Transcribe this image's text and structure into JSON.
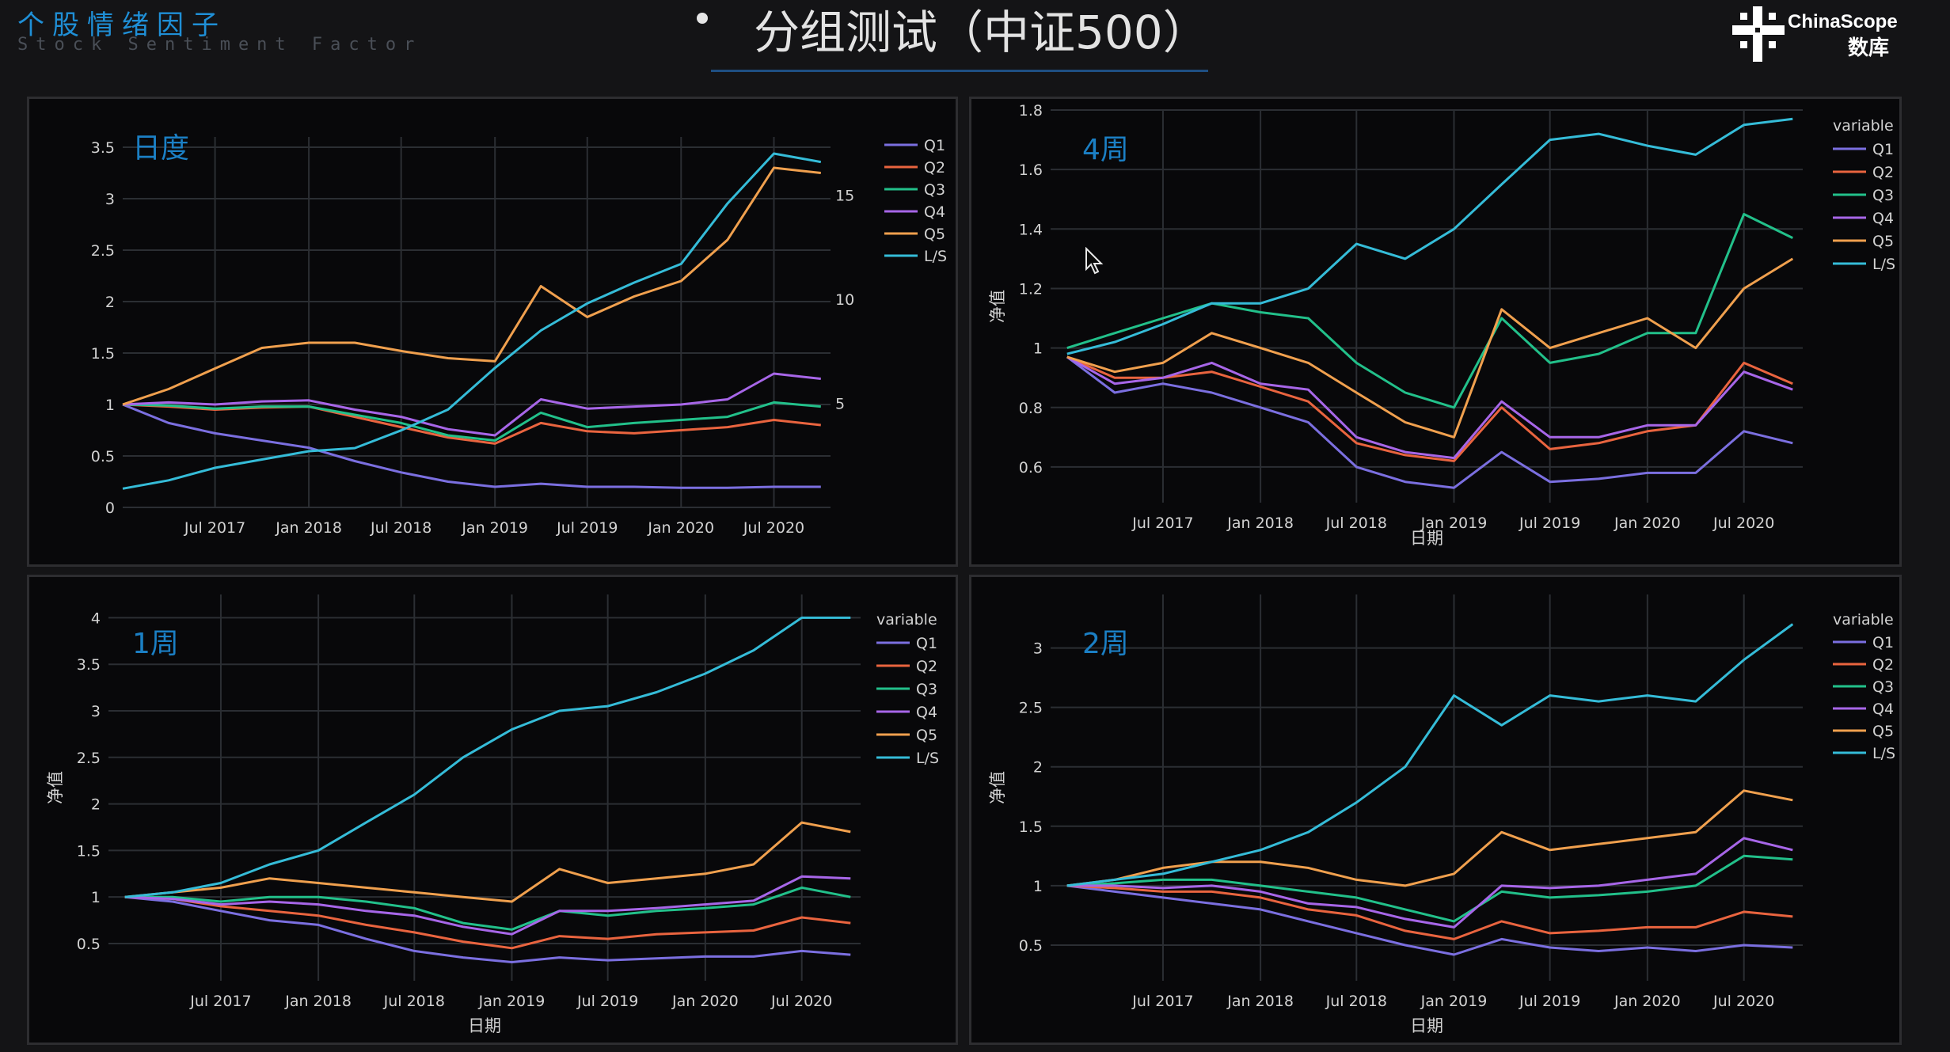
{
  "header": {
    "brand_cn": "个股情绪因子",
    "brand_en": "Stock Sentiment Factor",
    "title": "分组测试（中证500）",
    "logo_en": "ChinaScope",
    "logo_cn": "数库"
  },
  "colors": {
    "Q1": "#7b6fe0",
    "Q2": "#e9643f",
    "Q3": "#22c08a",
    "Q4": "#a766e8",
    "Q5": "#f0a04e",
    "L/S": "#35bcd8",
    "grid": "#2b2e33",
    "tick": "#d2d2d2",
    "panel_label": "#1b7fc4"
  },
  "chart_data": [
    {
      "id": "daily",
      "type": "line",
      "panel_label": "日度",
      "xlabel": "",
      "ylabel": "",
      "show_legend_title": false,
      "legend_title": "",
      "x_range": [
        "2017-01-01",
        "2020-10-20"
      ],
      "x_ticks": [
        "Jul 2017",
        "Jan 2018",
        "Jul 2018",
        "Jan 2019",
        "Jul 2019",
        "Jan 2020",
        "Jul 2020"
      ],
      "x_tick_dates": [
        "2017-07-01",
        "2018-01-01",
        "2018-07-01",
        "2019-01-01",
        "2019-07-01",
        "2020-01-01",
        "2020-07-01"
      ],
      "ylim": [
        0,
        3.6
      ],
      "y_ticks": [
        0,
        0.5,
        1,
        1.5,
        2,
        2.5,
        3,
        3.5
      ],
      "y_tick_labels": [
        "0",
        "0.5",
        "1",
        "1.5",
        "2",
        "2.5",
        "3",
        "3.5"
      ],
      "y2lim": [
        0,
        17.8
      ],
      "y2_ticks": [
        5,
        10,
        15
      ],
      "y2_tick_labels": [
        "5",
        "10",
        "15"
      ],
      "legend": [
        "Q1",
        "Q2",
        "Q3",
        "Q4",
        "Q5",
        "L/S"
      ],
      "dates": [
        "2017-01-01",
        "2017-04-01",
        "2017-07-01",
        "2017-10-01",
        "2018-01-01",
        "2018-04-01",
        "2018-07-01",
        "2018-10-01",
        "2019-01-01",
        "2019-04-01",
        "2019-07-01",
        "2019-10-01",
        "2020-01-01",
        "2020-04-01",
        "2020-07-01",
        "2020-10-01"
      ],
      "series": [
        {
          "name": "Q1",
          "values": [
            1.0,
            0.82,
            0.72,
            0.65,
            0.58,
            0.45,
            0.34,
            0.25,
            0.2,
            0.23,
            0.2,
            0.2,
            0.19,
            0.19,
            0.2,
            0.2
          ]
        },
        {
          "name": "Q2",
          "values": [
            1.0,
            0.98,
            0.95,
            0.97,
            0.98,
            0.88,
            0.78,
            0.68,
            0.62,
            0.82,
            0.74,
            0.72,
            0.75,
            0.78,
            0.85,
            0.8
          ]
        },
        {
          "name": "Q3",
          "values": [
            1.0,
            0.99,
            0.96,
            0.98,
            0.98,
            0.9,
            0.82,
            0.7,
            0.65,
            0.92,
            0.78,
            0.82,
            0.85,
            0.88,
            1.02,
            0.98
          ]
        },
        {
          "name": "Q4",
          "values": [
            1.0,
            1.02,
            1.0,
            1.03,
            1.04,
            0.95,
            0.88,
            0.76,
            0.7,
            1.05,
            0.96,
            0.98,
            1.0,
            1.05,
            1.3,
            1.25
          ]
        },
        {
          "name": "Q5",
          "values": [
            1.0,
            1.15,
            1.35,
            1.55,
            1.6,
            1.6,
            1.52,
            1.45,
            1.42,
            2.15,
            1.85,
            2.05,
            2.2,
            2.6,
            3.3,
            3.25
          ],
          "axis": "y"
        },
        {
          "name": "L/S",
          "values": [
            0.9,
            1.3,
            1.9,
            2.3,
            2.7,
            2.85,
            3.7,
            4.7,
            6.7,
            8.5,
            9.8,
            10.8,
            11.7,
            14.6,
            17.0,
            16.6
          ],
          "axis": "y2"
        }
      ]
    },
    {
      "id": "four_week",
      "type": "line",
      "panel_label": "4周",
      "xlabel": "日期",
      "ylabel": "净值",
      "show_legend_title": true,
      "legend_title": "variable",
      "x_range": [
        "2016-12-01",
        "2020-10-20"
      ],
      "x_ticks": [
        "Jul 2017",
        "Jan 2018",
        "Jul 2018",
        "Jan 2019",
        "Jul 2019",
        "Jan 2020",
        "Jul 2020"
      ],
      "x_tick_dates": [
        "2017-07-01",
        "2018-01-01",
        "2018-07-01",
        "2019-01-01",
        "2019-07-01",
        "2020-01-01",
        "2020-07-01"
      ],
      "ylim": [
        0.48,
        1.8
      ],
      "y_ticks": [
        0.6,
        0.8,
        1,
        1.2,
        1.4,
        1.6,
        1.8
      ],
      "y_tick_labels": [
        "0.6",
        "0.8",
        "1",
        "1.2",
        "1.4",
        "1.6",
        "1.8"
      ],
      "legend": [
        "Q1",
        "Q2",
        "Q3",
        "Q4",
        "Q5",
        "L/S"
      ],
      "dates": [
        "2017-01-01",
        "2017-04-01",
        "2017-07-01",
        "2017-10-01",
        "2018-01-01",
        "2018-04-01",
        "2018-07-01",
        "2018-10-01",
        "2019-01-01",
        "2019-04-01",
        "2019-07-01",
        "2019-10-01",
        "2020-01-01",
        "2020-04-01",
        "2020-07-01",
        "2020-10-01"
      ],
      "series": [
        {
          "name": "Q1",
          "values": [
            0.97,
            0.85,
            0.88,
            0.85,
            0.8,
            0.75,
            0.6,
            0.55,
            0.53,
            0.65,
            0.55,
            0.56,
            0.58,
            0.58,
            0.72,
            0.68
          ]
        },
        {
          "name": "Q2",
          "values": [
            0.97,
            0.9,
            0.9,
            0.92,
            0.87,
            0.82,
            0.68,
            0.64,
            0.62,
            0.8,
            0.66,
            0.68,
            0.72,
            0.74,
            0.95,
            0.88
          ]
        },
        {
          "name": "Q3",
          "values": [
            1.0,
            1.05,
            1.1,
            1.15,
            1.12,
            1.1,
            0.95,
            0.85,
            0.8,
            1.1,
            0.95,
            0.98,
            1.05,
            1.05,
            1.45,
            1.37
          ]
        },
        {
          "name": "Q4",
          "values": [
            0.97,
            0.88,
            0.9,
            0.95,
            0.88,
            0.86,
            0.7,
            0.65,
            0.63,
            0.82,
            0.7,
            0.7,
            0.74,
            0.74,
            0.92,
            0.86
          ]
        },
        {
          "name": "Q5",
          "values": [
            0.97,
            0.92,
            0.95,
            1.05,
            1.0,
            0.95,
            0.85,
            0.75,
            0.7,
            1.13,
            1.0,
            1.05,
            1.1,
            1.0,
            1.2,
            1.3
          ]
        },
        {
          "name": "L/S",
          "values": [
            0.98,
            1.02,
            1.08,
            1.15,
            1.15,
            1.2,
            1.35,
            1.3,
            1.4,
            1.55,
            1.7,
            1.72,
            1.68,
            1.65,
            1.75,
            1.77
          ]
        }
      ]
    },
    {
      "id": "one_week",
      "type": "line",
      "panel_label": "1周",
      "xlabel": "日期",
      "ylabel": "净值",
      "show_legend_title": true,
      "legend_title": "variable",
      "x_range": [
        "2016-12-01",
        "2020-10-20"
      ],
      "x_ticks": [
        "Jul 2017",
        "Jan 2018",
        "Jul 2018",
        "Jan 2019",
        "Jul 2019",
        "Jan 2020",
        "Jul 2020"
      ],
      "x_tick_dates": [
        "2017-07-01",
        "2018-01-01",
        "2018-07-01",
        "2019-01-01",
        "2019-07-01",
        "2020-01-01",
        "2020-07-01"
      ],
      "ylim": [
        0.1,
        4.25
      ],
      "y_ticks": [
        0.5,
        1,
        1.5,
        2,
        2.5,
        3,
        3.5,
        4
      ],
      "y_tick_labels": [
        "0.5",
        "1",
        "1.5",
        "2",
        "2.5",
        "3",
        "3.5",
        "4"
      ],
      "legend": [
        "Q1",
        "Q2",
        "Q3",
        "Q4",
        "Q5",
        "L/S"
      ],
      "dates": [
        "2017-01-01",
        "2017-04-01",
        "2017-07-01",
        "2017-10-01",
        "2018-01-01",
        "2018-04-01",
        "2018-07-01",
        "2018-10-01",
        "2019-01-01",
        "2019-04-01",
        "2019-07-01",
        "2019-10-01",
        "2020-01-01",
        "2020-04-01",
        "2020-07-01",
        "2020-10-01"
      ],
      "series": [
        {
          "name": "Q1",
          "values": [
            1.0,
            0.95,
            0.85,
            0.75,
            0.7,
            0.55,
            0.42,
            0.35,
            0.3,
            0.35,
            0.32,
            0.34,
            0.36,
            0.36,
            0.42,
            0.38
          ]
        },
        {
          "name": "Q2",
          "values": [
            1.0,
            0.98,
            0.9,
            0.85,
            0.8,
            0.7,
            0.62,
            0.52,
            0.45,
            0.58,
            0.55,
            0.6,
            0.62,
            0.64,
            0.78,
            0.72
          ]
        },
        {
          "name": "Q3",
          "values": [
            1.0,
            1.0,
            0.95,
            1.0,
            1.0,
            0.95,
            0.88,
            0.72,
            0.65,
            0.85,
            0.8,
            0.85,
            0.88,
            0.92,
            1.1,
            1.0
          ]
        },
        {
          "name": "Q4",
          "values": [
            1.0,
            0.98,
            0.92,
            0.95,
            0.92,
            0.85,
            0.8,
            0.68,
            0.6,
            0.85,
            0.85,
            0.88,
            0.92,
            0.96,
            1.22,
            1.2
          ]
        },
        {
          "name": "Q5",
          "values": [
            1.0,
            1.05,
            1.1,
            1.2,
            1.15,
            1.1,
            1.05,
            1.0,
            0.95,
            1.3,
            1.15,
            1.2,
            1.25,
            1.35,
            1.8,
            1.7
          ]
        },
        {
          "name": "L/S",
          "values": [
            1.0,
            1.05,
            1.15,
            1.35,
            1.5,
            1.8,
            2.1,
            2.5,
            2.8,
            3.0,
            3.05,
            3.2,
            3.4,
            3.65,
            4.0,
            4.0
          ]
        }
      ]
    },
    {
      "id": "two_week",
      "type": "line",
      "panel_label": "2周",
      "xlabel": "日期",
      "ylabel": "净值",
      "show_legend_title": true,
      "legend_title": "variable",
      "x_range": [
        "2016-12-01",
        "2020-10-20"
      ],
      "x_ticks": [
        "Jul 2017",
        "Jan 2018",
        "Jul 2018",
        "Jan 2019",
        "Jul 2019",
        "Jan 2020",
        "Jul 2020"
      ],
      "x_tick_dates": [
        "2017-07-01",
        "2018-01-01",
        "2018-07-01",
        "2019-01-01",
        "2019-07-01",
        "2020-01-01",
        "2020-07-01"
      ],
      "ylim": [
        0.2,
        3.45
      ],
      "y_ticks": [
        0.5,
        1,
        1.5,
        2,
        2.5,
        3
      ],
      "y_tick_labels": [
        "0.5",
        "1",
        "1.5",
        "2",
        "2.5",
        "3"
      ],
      "legend": [
        "Q1",
        "Q2",
        "Q3",
        "Q4",
        "Q5",
        "L/S"
      ],
      "dates": [
        "2017-01-01",
        "2017-04-01",
        "2017-07-01",
        "2017-10-01",
        "2018-01-01",
        "2018-04-01",
        "2018-07-01",
        "2018-10-01",
        "2019-01-01",
        "2019-04-01",
        "2019-07-01",
        "2019-10-01",
        "2020-01-01",
        "2020-04-01",
        "2020-07-01",
        "2020-10-01"
      ],
      "series": [
        {
          "name": "Q1",
          "values": [
            1.0,
            0.95,
            0.9,
            0.85,
            0.8,
            0.7,
            0.6,
            0.5,
            0.42,
            0.55,
            0.48,
            0.45,
            0.48,
            0.45,
            0.5,
            0.48
          ]
        },
        {
          "name": "Q2",
          "values": [
            1.0,
            0.98,
            0.95,
            0.95,
            0.9,
            0.8,
            0.75,
            0.62,
            0.55,
            0.7,
            0.6,
            0.62,
            0.65,
            0.65,
            0.78,
            0.74
          ]
        },
        {
          "name": "Q3",
          "values": [
            1.0,
            1.02,
            1.05,
            1.05,
            1.0,
            0.95,
            0.9,
            0.8,
            0.7,
            0.95,
            0.9,
            0.92,
            0.95,
            1.0,
            1.25,
            1.22
          ]
        },
        {
          "name": "Q4",
          "values": [
            1.0,
            1.0,
            0.98,
            1.0,
            0.95,
            0.85,
            0.82,
            0.72,
            0.65,
            1.0,
            0.98,
            1.0,
            1.05,
            1.1,
            1.4,
            1.3
          ]
        },
        {
          "name": "Q5",
          "values": [
            1.0,
            1.05,
            1.15,
            1.2,
            1.2,
            1.15,
            1.05,
            1.0,
            1.1,
            1.45,
            1.3,
            1.35,
            1.4,
            1.45,
            1.8,
            1.72
          ]
        },
        {
          "name": "L/S",
          "values": [
            1.0,
            1.05,
            1.1,
            1.2,
            1.3,
            1.45,
            1.7,
            2.0,
            2.6,
            2.35,
            2.6,
            2.55,
            2.6,
            2.55,
            2.9,
            3.2
          ]
        }
      ]
    }
  ]
}
